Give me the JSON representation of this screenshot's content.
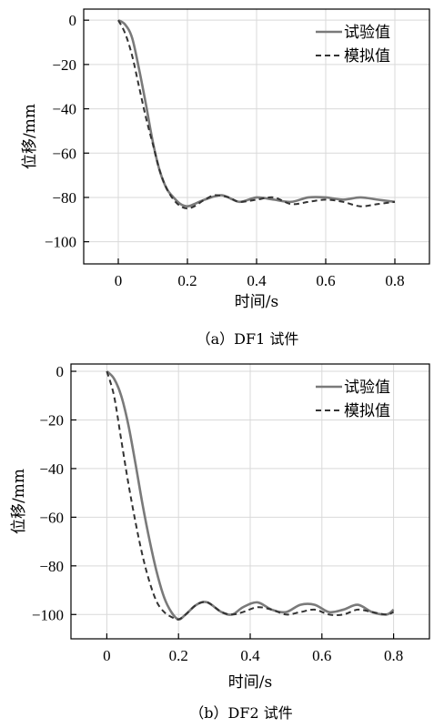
{
  "chart_data": [
    {
      "type": "line",
      "caption": "（a）DF1 试件",
      "xlabel": "时间/s",
      "ylabel": "位移/mm",
      "xlim": [
        -0.1,
        0.9
      ],
      "ylim": [
        -110,
        5
      ],
      "xticks": [
        0,
        0.2,
        0.4,
        0.6,
        0.8
      ],
      "xtick_labels": [
        "0",
        "0.2",
        "0.4",
        "0.6",
        "0.8"
      ],
      "yticks": [
        0,
        -20,
        -40,
        -60,
        -80,
        -100
      ],
      "ytick_labels": [
        "0",
        "−20",
        "−40",
        "−60",
        "−80",
        "−100"
      ],
      "grid": true,
      "legend_position": "top-right",
      "series": [
        {
          "name": "试验值",
          "color": "#7a7a7a",
          "style": "solid",
          "x": [
            0,
            0.02,
            0.04,
            0.06,
            0.08,
            0.1,
            0.12,
            0.14,
            0.16,
            0.18,
            0.2,
            0.22,
            0.25,
            0.3,
            0.35,
            0.4,
            0.45,
            0.5,
            0.55,
            0.6,
            0.65,
            0.7,
            0.75,
            0.8
          ],
          "y": [
            0,
            -2,
            -8,
            -22,
            -38,
            -55,
            -68,
            -76,
            -80,
            -83,
            -84,
            -83,
            -81,
            -79,
            -82,
            -80,
            -81,
            -82,
            -80,
            -80,
            -81,
            -80,
            -81,
            -82
          ]
        },
        {
          "name": "模拟值",
          "color": "#333333",
          "style": "dashed",
          "x": [
            0,
            0.02,
            0.04,
            0.06,
            0.08,
            0.1,
            0.12,
            0.14,
            0.16,
            0.18,
            0.2,
            0.22,
            0.25,
            0.28,
            0.32,
            0.35,
            0.4,
            0.45,
            0.5,
            0.55,
            0.6,
            0.65,
            0.7,
            0.75,
            0.8
          ],
          "y": [
            0,
            -6,
            -16,
            -30,
            -44,
            -56,
            -68,
            -76,
            -81,
            -84,
            -85,
            -84,
            -81,
            -79,
            -80,
            -82,
            -81,
            -80,
            -83,
            -82,
            -81,
            -82,
            -84,
            -83,
            -82
          ]
        }
      ]
    },
    {
      "type": "line",
      "caption": "（b）DF2 试件",
      "xlabel": "时间/s",
      "ylabel": "位移/mm",
      "xlim": [
        -0.1,
        0.9
      ],
      "ylim": [
        -110,
        3
      ],
      "xticks": [
        0,
        0.2,
        0.4,
        0.6,
        0.8
      ],
      "xtick_labels": [
        "0",
        "0.2",
        "0.4",
        "0.6",
        "0.8"
      ],
      "yticks": [
        0,
        -20,
        -40,
        -60,
        -80,
        -100
      ],
      "ytick_labels": [
        "0",
        "−20",
        "−40",
        "−60",
        "−80",
        "−100"
      ],
      "grid": true,
      "legend_position": "top-right",
      "series": [
        {
          "name": "试验值",
          "color": "#7a7a7a",
          "style": "solid",
          "x": [
            0,
            0.02,
            0.04,
            0.06,
            0.08,
            0.1,
            0.12,
            0.14,
            0.16,
            0.18,
            0.2,
            0.22,
            0.25,
            0.28,
            0.32,
            0.35,
            0.38,
            0.42,
            0.46,
            0.5,
            0.54,
            0.58,
            0.62,
            0.66,
            0.7,
            0.74,
            0.78,
            0.8
          ],
          "y": [
            0,
            -3,
            -10,
            -22,
            -38,
            -55,
            -70,
            -83,
            -93,
            -99,
            -102,
            -100,
            -96,
            -95,
            -99,
            -100,
            -97,
            -95,
            -98,
            -99,
            -96,
            -96,
            -99,
            -98,
            -96,
            -99,
            -100,
            -98
          ]
        },
        {
          "name": "模拟值",
          "color": "#333333",
          "style": "dashed",
          "x": [
            0,
            0.02,
            0.04,
            0.06,
            0.08,
            0.1,
            0.12,
            0.14,
            0.16,
            0.18,
            0.2,
            0.22,
            0.25,
            0.28,
            0.32,
            0.35,
            0.38,
            0.42,
            0.46,
            0.5,
            0.54,
            0.58,
            0.62,
            0.66,
            0.7,
            0.74,
            0.78,
            0.8
          ],
          "y": [
            0,
            -10,
            -28,
            -46,
            -62,
            -76,
            -87,
            -95,
            -99,
            -101,
            -102,
            -100,
            -96,
            -95,
            -99,
            -100,
            -99,
            -97,
            -98,
            -100,
            -99,
            -98,
            -100,
            -100,
            -98,
            -99,
            -100,
            -99
          ]
        }
      ]
    }
  ]
}
